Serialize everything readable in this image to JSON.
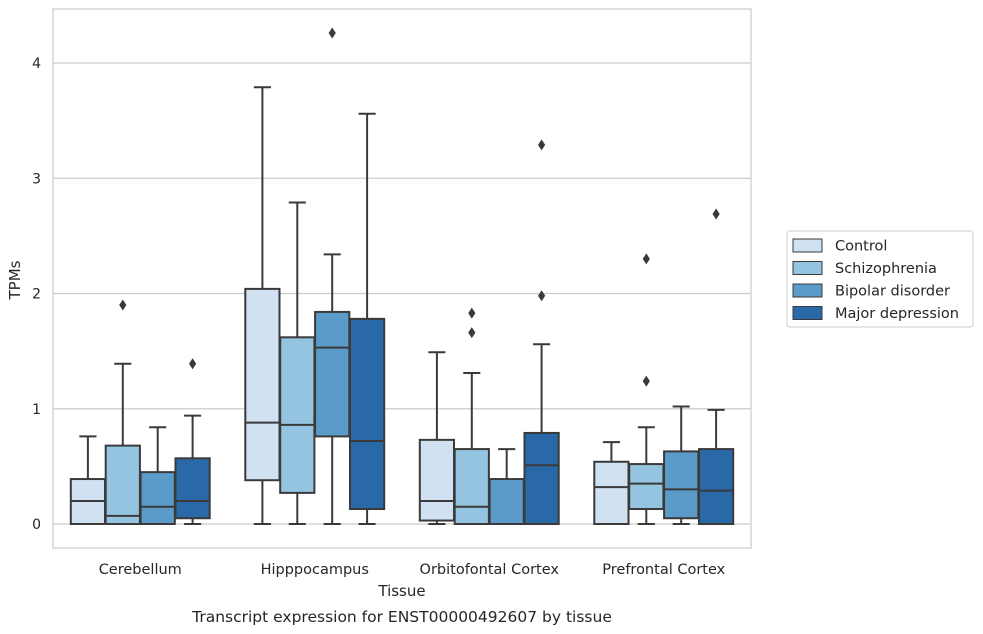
{
  "chart_data": {
    "type": "boxplot",
    "caption": "Transcript expression for ENST00000492607 by tissue",
    "xlabel": "Tissue",
    "ylabel": "TPMs",
    "ylim": [
      -0.2,
      4.6
    ],
    "yticks": [
      0,
      1,
      2,
      3,
      4
    ],
    "grid": "horizontal",
    "legend_placement": "right",
    "categories": [
      "Cerebellum",
      "Hipppocampus",
      "Orbitofontal Cortex",
      "Prefrontal Cortex"
    ],
    "series": [
      {
        "name": "Control",
        "color": "#d0e1f2",
        "boxes": [
          {
            "min": 0,
            "q1": 0,
            "median": 0.2,
            "q3": 0.39,
            "max": 0.76,
            "outliers": []
          },
          {
            "min": 0,
            "q1": 0.38,
            "median": 0.88,
            "q3": 2.04,
            "max": 3.79,
            "outliers": []
          },
          {
            "min": 0,
            "q1": 0.03,
            "median": 0.2,
            "q3": 0.73,
            "max": 1.49,
            "outliers": []
          },
          {
            "min": 0,
            "q1": 0,
            "median": 0.32,
            "q3": 0.54,
            "max": 0.71,
            "outliers": []
          }
        ]
      },
      {
        "name": "Schizophrenia",
        "color": "#94c4df",
        "boxes": [
          {
            "min": 0,
            "q1": 0,
            "median": 0.07,
            "q3": 0.68,
            "max": 1.39,
            "outliers": [
              1.9
            ]
          },
          {
            "min": 0,
            "q1": 0.27,
            "median": 0.86,
            "q3": 1.62,
            "max": 2.79,
            "outliers": []
          },
          {
            "min": 0,
            "q1": 0,
            "median": 0.15,
            "q3": 0.65,
            "max": 1.31,
            "outliers": [
              1.66,
              1.83
            ]
          },
          {
            "min": 0,
            "q1": 0.13,
            "median": 0.35,
            "q3": 0.52,
            "max": 0.84,
            "outliers": [
              1.24,
              2.3
            ]
          }
        ]
      },
      {
        "name": "Bipolar disorder",
        "color": "#5b9bc9",
        "boxes": [
          {
            "min": 0,
            "q1": 0,
            "median": 0.15,
            "q3": 0.45,
            "max": 0.84,
            "outliers": []
          },
          {
            "min": 0,
            "q1": 0.76,
            "median": 1.53,
            "q3": 1.84,
            "max": 2.34,
            "outliers": [
              4.26
            ]
          },
          {
            "min": 0,
            "q1": 0,
            "median": 0.0,
            "q3": 0.39,
            "max": 0.65,
            "outliers": []
          },
          {
            "min": 0,
            "q1": 0.05,
            "median": 0.3,
            "q3": 0.63,
            "max": 1.02,
            "outliers": []
          }
        ]
      },
      {
        "name": "Major depression",
        "color": "#2a69a8",
        "boxes": [
          {
            "min": 0,
            "q1": 0.05,
            "median": 0.2,
            "q3": 0.57,
            "max": 0.94,
            "outliers": [
              1.39
            ]
          },
          {
            "min": 0,
            "q1": 0.13,
            "median": 0.72,
            "q3": 1.78,
            "max": 3.56,
            "outliers": []
          },
          {
            "min": 0,
            "q1": 0,
            "median": 0.51,
            "q3": 0.79,
            "max": 1.56,
            "outliers": [
              1.98,
              3.29
            ]
          },
          {
            "min": 0,
            "q1": 0,
            "median": 0.29,
            "q3": 0.65,
            "max": 0.99,
            "outliers": [
              2.69
            ]
          }
        ]
      }
    ]
  }
}
